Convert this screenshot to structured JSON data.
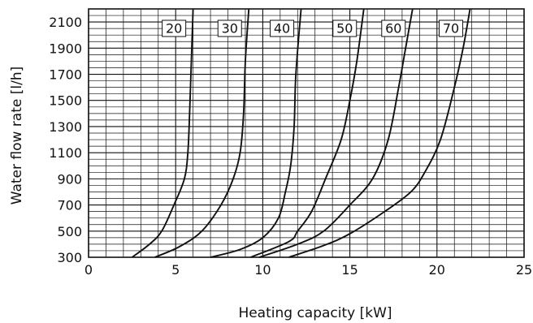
{
  "chart_data": {
    "type": "line",
    "xlabel": "Heating capacity [kW]",
    "ylabel": "Water flow rate [l/h]",
    "xlim": [
      0,
      25
    ],
    "ylim": [
      300,
      2200
    ],
    "x_ticks": [
      0,
      5,
      10,
      15,
      20,
      25
    ],
    "y_ticks": [
      300,
      500,
      700,
      900,
      1100,
      1300,
      1500,
      1700,
      1900,
      2100
    ],
    "grid": true,
    "series": [
      {
        "name": "20",
        "points": [
          [
            2.5,
            300
          ],
          [
            3.5,
            400
          ],
          [
            4.2,
            500
          ],
          [
            4.9,
            700
          ],
          [
            5.5,
            900
          ],
          [
            5.7,
            1100
          ],
          [
            5.8,
            1400
          ],
          [
            5.9,
            1800
          ],
          [
            6.0,
            2200
          ]
        ]
      },
      {
        "name": "30",
        "points": [
          [
            3.8,
            300
          ],
          [
            5.2,
            380
          ],
          [
            6.5,
            500
          ],
          [
            7.6,
            700
          ],
          [
            8.3,
            900
          ],
          [
            8.7,
            1100
          ],
          [
            8.9,
            1400
          ],
          [
            9.0,
            1800
          ],
          [
            9.2,
            2200
          ]
        ]
      },
      {
        "name": "40",
        "points": [
          [
            7.0,
            300
          ],
          [
            8.7,
            360
          ],
          [
            10.0,
            450
          ],
          [
            10.9,
            600
          ],
          [
            11.3,
            800
          ],
          [
            11.6,
            1000
          ],
          [
            11.8,
            1300
          ],
          [
            11.9,
            1700
          ],
          [
            12.2,
            2200
          ]
        ]
      },
      {
        "name": "50",
        "points": [
          [
            9.3,
            300
          ],
          [
            11.5,
            420
          ],
          [
            12.0,
            500
          ],
          [
            12.8,
            650
          ],
          [
            13.6,
            900
          ],
          [
            14.5,
            1200
          ],
          [
            15.0,
            1500
          ],
          [
            15.4,
            1800
          ],
          [
            15.8,
            2200
          ]
        ]
      },
      {
        "name": "60",
        "points": [
          [
            9.8,
            300
          ],
          [
            12.0,
            400
          ],
          [
            13.5,
            500
          ],
          [
            15.0,
            700
          ],
          [
            16.3,
            900
          ],
          [
            17.2,
            1200
          ],
          [
            17.8,
            1600
          ],
          [
            18.2,
            1900
          ],
          [
            18.6,
            2200
          ]
        ]
      },
      {
        "name": "70",
        "points": [
          [
            11.5,
            300
          ],
          [
            13.5,
            390
          ],
          [
            15.0,
            480
          ],
          [
            17.0,
            650
          ],
          [
            18.5,
            800
          ],
          [
            19.3,
            950
          ],
          [
            20.2,
            1200
          ],
          [
            21.0,
            1600
          ],
          [
            21.5,
            1900
          ],
          [
            21.9,
            2200
          ]
        ]
      }
    ]
  }
}
